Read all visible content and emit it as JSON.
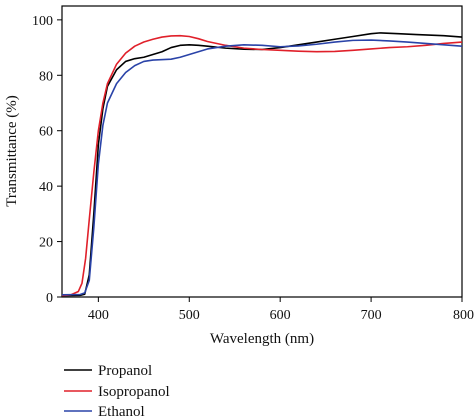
{
  "chart_data": {
    "type": "line",
    "title": "",
    "xlabel": "Wavelength (nm)",
    "ylabel": "Transmittance (%)",
    "xlim": [
      360,
      800
    ],
    "ylim": [
      0,
      105
    ],
    "x_ticks": [
      400,
      500,
      600,
      700,
      800
    ],
    "y_ticks": [
      0,
      20,
      40,
      60,
      80,
      100
    ],
    "x_tick_labels": [
      "400",
      "500",
      "600",
      "700",
      "800"
    ],
    "y_tick_labels": [
      "0",
      "20",
      "40",
      "60",
      "80",
      "100"
    ],
    "grid": false,
    "legend_position": "bottom-left",
    "series": [
      {
        "name": "Propanol",
        "color": "#000000",
        "points": [
          [
            360,
            0.5
          ],
          [
            380,
            0.6
          ],
          [
            385,
            1
          ],
          [
            390,
            8
          ],
          [
            395,
            30
          ],
          [
            400,
            55
          ],
          [
            405,
            68
          ],
          [
            410,
            76
          ],
          [
            420,
            82
          ],
          [
            430,
            85
          ],
          [
            440,
            86
          ],
          [
            450,
            86.5
          ],
          [
            460,
            87.5
          ],
          [
            470,
            88.5
          ],
          [
            480,
            90
          ],
          [
            490,
            90.8
          ],
          [
            500,
            91
          ],
          [
            510,
            90.8
          ],
          [
            520,
            90.5
          ],
          [
            540,
            89.8
          ],
          [
            560,
            89.4
          ],
          [
            580,
            89.3
          ],
          [
            600,
            90
          ],
          [
            620,
            91
          ],
          [
            640,
            92
          ],
          [
            660,
            93
          ],
          [
            680,
            94
          ],
          [
            700,
            95
          ],
          [
            710,
            95.3
          ],
          [
            730,
            95
          ],
          [
            750,
            94.7
          ],
          [
            780,
            94.3
          ],
          [
            800,
            93.8
          ]
        ]
      },
      {
        "name": "Isopropanol",
        "color": "#e0202a",
        "points": [
          [
            360,
            0.5
          ],
          [
            370,
            0.8
          ],
          [
            378,
            2
          ],
          [
            382,
            5
          ],
          [
            386,
            14
          ],
          [
            390,
            28
          ],
          [
            395,
            45
          ],
          [
            400,
            60
          ],
          [
            405,
            70
          ],
          [
            410,
            77
          ],
          [
            420,
            84
          ],
          [
            430,
            88
          ],
          [
            440,
            90.5
          ],
          [
            450,
            92
          ],
          [
            460,
            93
          ],
          [
            470,
            93.8
          ],
          [
            480,
            94.2
          ],
          [
            490,
            94.3
          ],
          [
            500,
            94
          ],
          [
            510,
            93.2
          ],
          [
            520,
            92.2
          ],
          [
            540,
            90.8
          ],
          [
            560,
            89.8
          ],
          [
            580,
            89.3
          ],
          [
            600,
            89
          ],
          [
            620,
            88.7
          ],
          [
            640,
            88.5
          ],
          [
            660,
            88.6
          ],
          [
            680,
            89
          ],
          [
            700,
            89.5
          ],
          [
            720,
            90
          ],
          [
            740,
            90.3
          ],
          [
            760,
            90.8
          ],
          [
            780,
            91.5
          ],
          [
            800,
            92
          ]
        ]
      },
      {
        "name": "Ethanol",
        "color": "#2a43a8",
        "points": [
          [
            360,
            0.8
          ],
          [
            380,
            0.9
          ],
          [
            385,
            1.5
          ],
          [
            390,
            6
          ],
          [
            395,
            25
          ],
          [
            400,
            48
          ],
          [
            405,
            62
          ],
          [
            410,
            70
          ],
          [
            420,
            77
          ],
          [
            430,
            81
          ],
          [
            440,
            83.5
          ],
          [
            450,
            85
          ],
          [
            460,
            85.5
          ],
          [
            480,
            85.8
          ],
          [
            490,
            86.5
          ],
          [
            500,
            87.5
          ],
          [
            510,
            88.5
          ],
          [
            520,
            89.5
          ],
          [
            540,
            90.5
          ],
          [
            560,
            91
          ],
          [
            580,
            90.8
          ],
          [
            600,
            90.3
          ],
          [
            620,
            90.6
          ],
          [
            640,
            91.2
          ],
          [
            660,
            92
          ],
          [
            680,
            92.6
          ],
          [
            700,
            92.7
          ],
          [
            720,
            92.4
          ],
          [
            740,
            92
          ],
          [
            760,
            91.5
          ],
          [
            780,
            91
          ],
          [
            800,
            90.5
          ]
        ]
      }
    ]
  }
}
